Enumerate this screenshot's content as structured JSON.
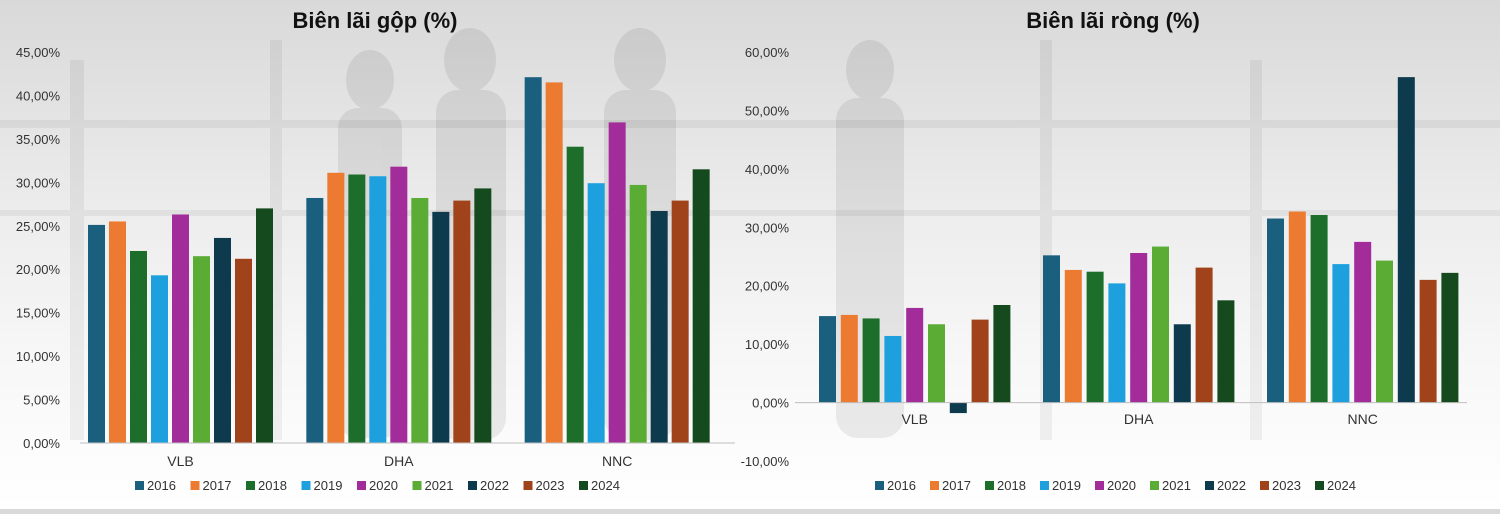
{
  "colors": {
    "2016": "#1a5f7e",
    "2017": "#ed7a31",
    "2018": "#1d6e2b",
    "2019": "#1ea0de",
    "2020": "#a12c9a",
    "2021": "#5aac34",
    "2022": "#0d3a4c",
    "2023": "#a0431a",
    "2024": "#154a1e"
  },
  "chart_data": [
    {
      "type": "bar",
      "title": "Biên lãi gộp (%)",
      "categories": [
        "VLB",
        "DHA",
        "NNC"
      ],
      "ylim": [
        0,
        45
      ],
      "yticks": [
        0,
        5,
        10,
        15,
        20,
        25,
        30,
        35,
        40,
        45
      ],
      "ytick_labels": [
        "0,00%",
        "5,00%",
        "10,00%",
        "15,00%",
        "20,00%",
        "25,00%",
        "30,00%",
        "35,00%",
        "40,00%",
        "45,00%"
      ],
      "legend_position": "bottom",
      "grid": false,
      "series": [
        {
          "name": "2016",
          "values": [
            25.1,
            28.2,
            42.1
          ]
        },
        {
          "name": "2017",
          "values": [
            25.5,
            31.1,
            41.5
          ]
        },
        {
          "name": "2018",
          "values": [
            22.1,
            30.9,
            34.1
          ]
        },
        {
          "name": "2019",
          "values": [
            19.3,
            30.7,
            29.9
          ]
        },
        {
          "name": "2020",
          "values": [
            26.3,
            31.8,
            36.9
          ]
        },
        {
          "name": "2021",
          "values": [
            21.5,
            28.2,
            29.7
          ]
        },
        {
          "name": "2022",
          "values": [
            23.6,
            26.6,
            26.7
          ]
        },
        {
          "name": "2023",
          "values": [
            21.2,
            27.9,
            27.9
          ]
        },
        {
          "name": "2024",
          "values": [
            27.0,
            29.3,
            31.5
          ]
        }
      ]
    },
    {
      "type": "bar",
      "title": "Biên lãi ròng (%)",
      "categories": [
        "VLB",
        "DHA",
        "NNC"
      ],
      "ylim": [
        -10,
        60
      ],
      "yticks": [
        -10,
        0,
        10,
        20,
        30,
        40,
        50,
        60
      ],
      "ytick_labels": [
        "-10,00%",
        "0,00%",
        "10,00%",
        "20,00%",
        "30,00%",
        "40,00%",
        "50,00%",
        "60,00%"
      ],
      "legend_position": "bottom",
      "grid": false,
      "series": [
        {
          "name": "2016",
          "values": [
            14.8,
            25.2,
            31.5
          ]
        },
        {
          "name": "2017",
          "values": [
            15.0,
            22.7,
            32.7
          ]
        },
        {
          "name": "2018",
          "values": [
            14.4,
            22.4,
            32.1
          ]
        },
        {
          "name": "2019",
          "values": [
            11.4,
            20.4,
            23.7
          ]
        },
        {
          "name": "2020",
          "values": [
            16.2,
            25.6,
            27.5
          ]
        },
        {
          "name": "2021",
          "values": [
            13.4,
            26.7,
            24.3
          ]
        },
        {
          "name": "2022",
          "values": [
            -1.8,
            13.4,
            55.7
          ]
        },
        {
          "name": "2023",
          "values": [
            14.2,
            23.1,
            21.0
          ]
        },
        {
          "name": "2024",
          "values": [
            16.7,
            17.5,
            22.2
          ]
        }
      ]
    }
  ]
}
